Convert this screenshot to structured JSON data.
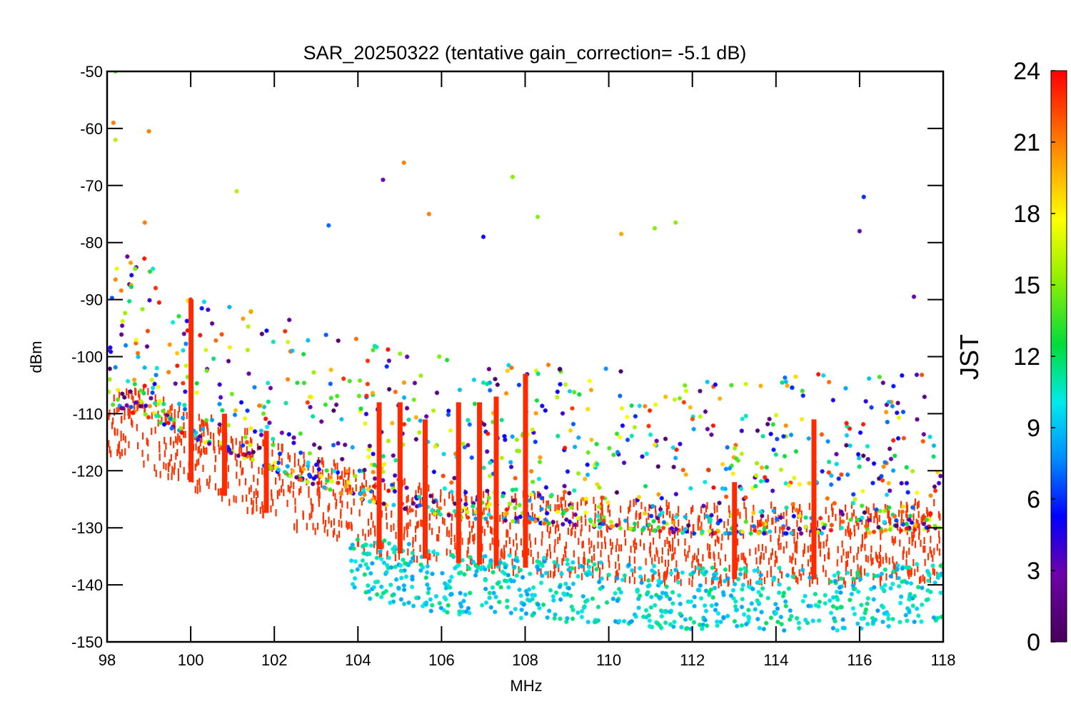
{
  "chart_data": {
    "type": "scatter",
    "title": "SAR_20250322 (tentative gain_correction= -5.1 dB)",
    "xlabel": "MHz",
    "ylabel": "dBm",
    "xlim": [
      98,
      118
    ],
    "ylim": [
      -150,
      -50
    ],
    "xticks": [
      "98",
      "100",
      "102",
      "104",
      "106",
      "108",
      "110",
      "112",
      "114",
      "116",
      "118"
    ],
    "yticks": [
      "-50",
      "-60",
      "-70",
      "-80",
      "-90",
      "-100",
      "-110",
      "-120",
      "-130",
      "-140",
      "-150"
    ],
    "colorbar": {
      "label": "JST",
      "range": [
        0,
        24
      ],
      "ticks": [
        "24",
        "21",
        "18",
        "15",
        "12",
        "9",
        "6",
        "3",
        "0"
      ],
      "colormap": "rainbow"
    },
    "marker": "asterisk",
    "grid": false,
    "dominant_color": "#ff3300",
    "noise_floor": [
      {
        "x": 98,
        "y": -112
      },
      {
        "x": 100,
        "y": -118
      },
      {
        "x": 102,
        "y": -124
      },
      {
        "x": 104,
        "y": -129
      },
      {
        "x": 106,
        "y": -132
      },
      {
        "x": 108,
        "y": -133
      },
      {
        "x": 110,
        "y": -134
      },
      {
        "x": 112,
        "y": -135
      },
      {
        "x": 114,
        "y": -135
      },
      {
        "x": 116,
        "y": -135
      },
      {
        "x": 118,
        "y": -134
      }
    ],
    "peaks": [
      {
        "x": 98.2,
        "y": -50,
        "jst": 14
      },
      {
        "x": 98.2,
        "y": -62,
        "jst": 16
      },
      {
        "x": 98.15,
        "y": -59,
        "jst": 21
      },
      {
        "x": 99.0,
        "y": -60.5,
        "jst": 21
      },
      {
        "x": 98.9,
        "y": -76.5,
        "jst": 21
      },
      {
        "x": 100.0,
        "y": -90,
        "jst": 23
      },
      {
        "x": 101.1,
        "y": -71,
        "jst": 16
      },
      {
        "x": 103.3,
        "y": -77,
        "jst": 7
      },
      {
        "x": 104.6,
        "y": -69,
        "jst": 3
      },
      {
        "x": 105.1,
        "y": -66,
        "jst": 21
      },
      {
        "x": 105.7,
        "y": -75,
        "jst": 21
      },
      {
        "x": 107.0,
        "y": -79,
        "jst": 5
      },
      {
        "x": 107.7,
        "y": -68.5,
        "jst": 15
      },
      {
        "x": 108.3,
        "y": -75.5,
        "jst": 15
      },
      {
        "x": 110.3,
        "y": -78.5,
        "jst": 20
      },
      {
        "x": 111.1,
        "y": -77.5,
        "jst": 15
      },
      {
        "x": 111.6,
        "y": -76.5,
        "jst": 15
      },
      {
        "x": 116.1,
        "y": -72,
        "jst": 6
      },
      {
        "x": 116.0,
        "y": -78,
        "jst": 3
      },
      {
        "x": 117.3,
        "y": -89.5,
        "jst": 3
      }
    ],
    "carriers": [
      {
        "x": 100.0,
        "y_top": -90,
        "jst": 23
      },
      {
        "x": 100.8,
        "y_top": -110,
        "jst": 23
      },
      {
        "x": 101.8,
        "y_top": -113,
        "jst": 23
      },
      {
        "x": 104.5,
        "y_top": -108,
        "jst": 23
      },
      {
        "x": 105.0,
        "y_top": -108,
        "jst": 23
      },
      {
        "x": 105.6,
        "y_top": -111,
        "jst": 23
      },
      {
        "x": 106.4,
        "y_top": -108,
        "jst": 23
      },
      {
        "x": 106.9,
        "y_top": -108,
        "jst": 23
      },
      {
        "x": 107.3,
        "y_top": -107,
        "jst": 23
      },
      {
        "x": 108.0,
        "y_top": -103,
        "jst": 23
      },
      {
        "x": 113.0,
        "y_top": -122,
        "jst": 23
      },
      {
        "x": 114.9,
        "y_top": -111,
        "jst": 23
      }
    ]
  }
}
